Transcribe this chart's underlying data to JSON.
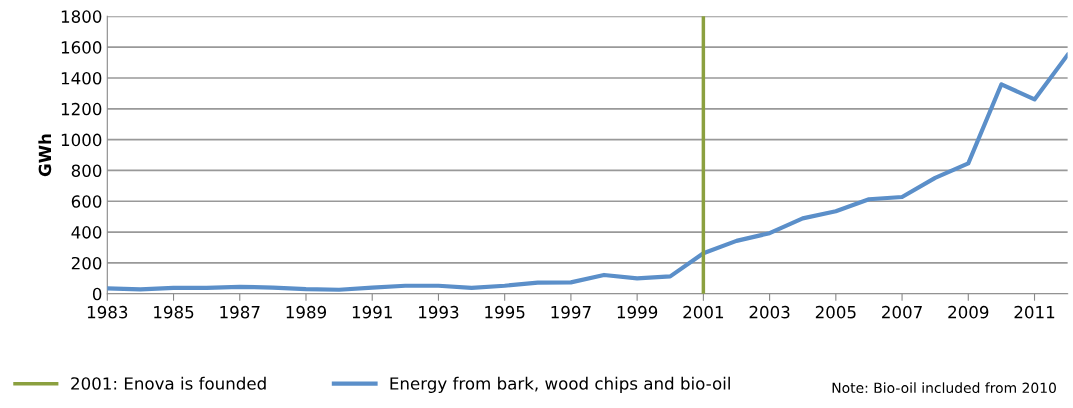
{
  "chart_data": {
    "type": "line",
    "ylabel": "GWh",
    "x": [
      1983,
      1984,
      1985,
      1986,
      1987,
      1988,
      1989,
      1990,
      1991,
      1992,
      1993,
      1994,
      1995,
      1996,
      1997,
      1998,
      1999,
      2000,
      2001,
      2002,
      2003,
      2004,
      2005,
      2006,
      2007,
      2008,
      2009,
      2010,
      2011,
      2012
    ],
    "series": [
      {
        "name": "Energy from bark, wood chips and bio-oil",
        "color": "#5b8fc9",
        "values": [
          35,
          28,
          38,
          38,
          45,
          40,
          30,
          26,
          40,
          52,
          52,
          38,
          52,
          72,
          74,
          122,
          100,
          113,
          263,
          343,
          393,
          489,
          535,
          613,
          628,
          752,
          846,
          1359,
          1261,
          1550
        ]
      }
    ],
    "xlim": [
      1983,
      2012
    ],
    "xticks": [
      1983,
      1985,
      1987,
      1989,
      1991,
      1993,
      1995,
      1997,
      1999,
      2001,
      2003,
      2005,
      2007,
      2009,
      2011
    ],
    "ylim": [
      0,
      1800
    ],
    "yticks": [
      0,
      200,
      400,
      600,
      800,
      1000,
      1200,
      1400,
      1600,
      1800
    ],
    "ref_lines": [
      {
        "axis": "x",
        "value": 2001,
        "label": "2001: Enova is founded",
        "color": "#8ba03f"
      }
    ],
    "annotations": [
      "Note: Bio-oil included from 2010"
    ],
    "grid": "y",
    "legend": "bottom",
    "marker": "none",
    "line_style": "solid"
  }
}
